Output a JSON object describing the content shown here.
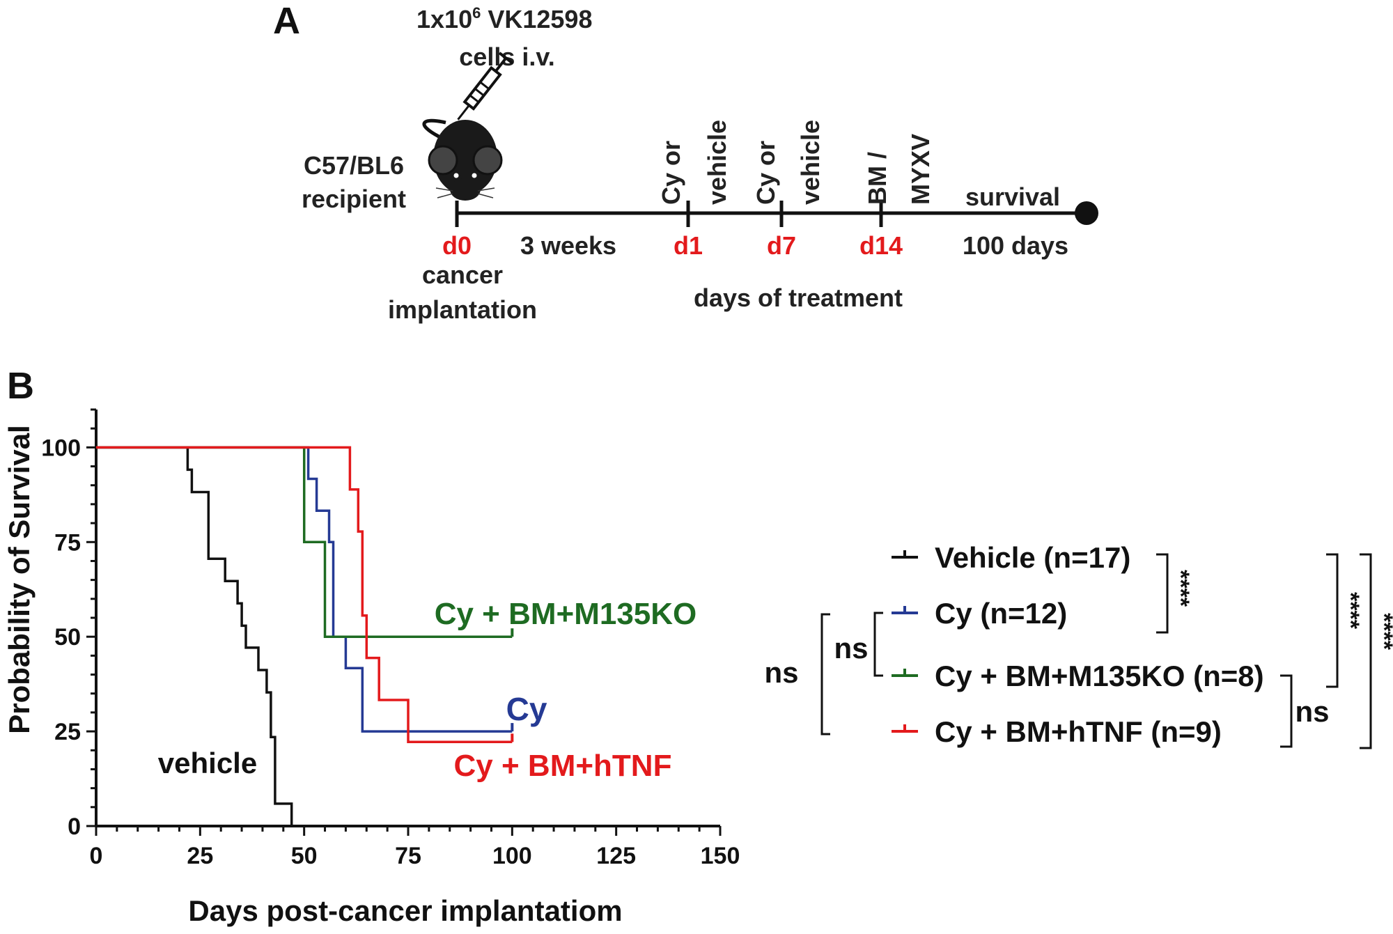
{
  "panel_a": {
    "label": "A",
    "injection_line1": "1x10",
    "injection_sup": "6",
    "injection_line1_rest": " VK12598",
    "injection_line2": "cells i.v.",
    "recipient_line1": "C57/BL6",
    "recipient_line2": "recipient",
    "stages": [
      {
        "day": "d0",
        "above": [],
        "below": [
          "cancer",
          "implantation"
        ]
      },
      {
        "day": "d1",
        "above": [
          "Cy or",
          "vehicle"
        ],
        "below": []
      },
      {
        "day": "d7",
        "above": [
          "Cy or",
          "vehicle"
        ],
        "below": []
      },
      {
        "day": "d14",
        "above": [
          "BM /",
          "MYXV"
        ],
        "below": []
      }
    ],
    "interval_label": "3 weeks",
    "treatment_label": "days of treatment",
    "survival_label": "survival",
    "survival_duration": "100 days",
    "colors": {
      "day": "#e31a1c",
      "text": "#222222"
    }
  },
  "panel_b": {
    "label": "B",
    "comparisons": {
      "ns_outer": "ns",
      "ns_inner": "ns",
      "ns_right": "ns",
      "sig_1": "****",
      "sig_2": "****",
      "sig_3": "****"
    }
  },
  "chart_data": {
    "type": "line",
    "subtype": "kaplan-meier",
    "title": "",
    "xlabel": "Days post-cancer implantatiom",
    "ylabel": "Probability of Survival",
    "xlim": [
      0,
      150
    ],
    "ylim": [
      0,
      110
    ],
    "xticks": [
      "0",
      "25",
      "50",
      "75",
      "100",
      "125",
      "150"
    ],
    "yticks": [
      "0",
      "25",
      "50",
      "75",
      "100"
    ],
    "grid": false,
    "legend_position": "right",
    "series": [
      {
        "name": "Vehicle (n=17)",
        "label": "vehicle",
        "color": "#111111",
        "steps": [
          [
            0,
            100
          ],
          [
            22,
            100
          ],
          [
            22,
            94.1
          ],
          [
            23,
            94.1
          ],
          [
            23,
            88.2
          ],
          [
            27,
            88.2
          ],
          [
            27,
            70.6
          ],
          [
            31,
            70.6
          ],
          [
            31,
            64.7
          ],
          [
            34,
            64.7
          ],
          [
            34,
            58.8
          ],
          [
            35,
            58.8
          ],
          [
            35,
            52.9
          ],
          [
            36,
            52.9
          ],
          [
            36,
            47.1
          ],
          [
            39,
            47.1
          ],
          [
            39,
            41.2
          ],
          [
            41,
            41.2
          ],
          [
            41,
            35.3
          ],
          [
            42,
            35.3
          ],
          [
            42,
            23.5
          ],
          [
            43,
            23.5
          ],
          [
            43,
            5.9
          ],
          [
            47,
            5.9
          ],
          [
            47,
            0
          ]
        ],
        "censored": []
      },
      {
        "name": "Cy (n=12)",
        "label": "Cy",
        "color": "#253a94",
        "steps": [
          [
            0,
            100
          ],
          [
            51,
            100
          ],
          [
            51,
            91.7
          ],
          [
            53,
            91.7
          ],
          [
            53,
            83.3
          ],
          [
            56,
            83.3
          ],
          [
            56,
            75
          ],
          [
            57,
            75
          ],
          [
            57,
            50
          ],
          [
            60,
            50
          ],
          [
            60,
            41.7
          ],
          [
            64,
            41.7
          ],
          [
            64,
            25
          ],
          [
            100,
            25
          ]
        ],
        "censored": [
          [
            100,
            25
          ]
        ]
      },
      {
        "name": "Cy + BM+M135KO (n=8)",
        "label": "Cy + BM+M135KO",
        "color": "#1e6b22",
        "steps": [
          [
            0,
            100
          ],
          [
            50,
            100
          ],
          [
            50,
            75
          ],
          [
            55,
            75
          ],
          [
            55,
            50
          ],
          [
            100,
            50
          ]
        ],
        "censored": [
          [
            100,
            50
          ]
        ]
      },
      {
        "name": "Cy + BM+hTNF (n=9)",
        "label": "Cy + BM+hTNF",
        "color": "#e31a1c",
        "steps": [
          [
            0,
            100
          ],
          [
            61,
            100
          ],
          [
            61,
            88.9
          ],
          [
            63,
            88.9
          ],
          [
            63,
            77.8
          ],
          [
            64,
            77.8
          ],
          [
            64,
            55.6
          ],
          [
            65,
            55.6
          ],
          [
            65,
            44.4
          ],
          [
            68,
            44.4
          ],
          [
            68,
            33.3
          ],
          [
            75,
            33.3
          ],
          [
            75,
            22.2
          ],
          [
            100,
            22.2
          ]
        ],
        "censored": [
          [
            100,
            22.2
          ]
        ]
      }
    ]
  }
}
